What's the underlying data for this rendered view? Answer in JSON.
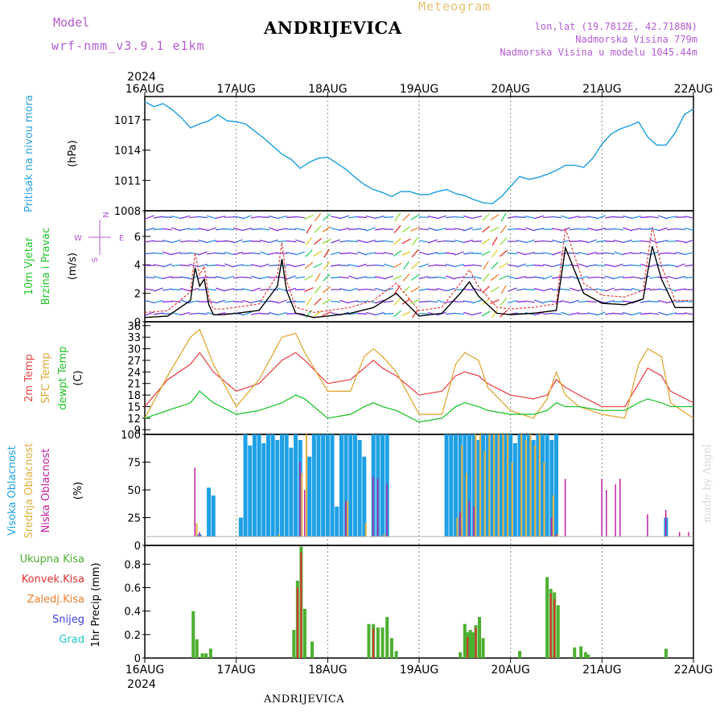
{
  "header": {
    "model_label": "Model",
    "model_name": "wrf-nmm_v3.9.1  e1km",
    "station": "ANDRIJEVICA",
    "meteogram": "Meteogram",
    "lonlat": "lon,lat (19.7812E, 42.7188N)",
    "elevation": "Nadmorska Visina 779m",
    "model_elevation": "Nadmorska Visina u modelu 1045.44m"
  },
  "footer": {
    "station": "ANDRIJEVICA",
    "credit": "made by Angel"
  },
  "time_axis": {
    "year": "2024",
    "ticks": [
      "16AUG",
      "17AUG",
      "18AUG",
      "19AUG",
      "20AUG",
      "21AUG",
      "22AUG"
    ]
  },
  "colors": {
    "pressure": "#29a3e0",
    "wind_speed": "#000000",
    "wind_gust": "#e83c3c",
    "t2m": "#e8484c",
    "sfc": "#e0a838",
    "dew": "#22c42a",
    "cloud_high": "#1ea0e6",
    "cloud_mid": "#e0b040",
    "cloud_low": "#c020a0",
    "precip_total": "#4cb030",
    "precip_conv": "#e03030",
    "precip_frozen": "#f08030",
    "snow": "#4040e0",
    "hail": "#20c8c8",
    "wind_compass": "#b45cd6"
  },
  "panels": {
    "pressure": {
      "label": "Pritisak na nivou mora",
      "unit": "(hPa)",
      "yticks": [
        "1008",
        "1011",
        "1014",
        "1017"
      ]
    },
    "wind": {
      "label1": "10m Vjetar",
      "label2": "Brzina i Pravac",
      "unit": "(m/s)",
      "yticks": [
        "0",
        "2",
        "4",
        "6"
      ],
      "compass": {
        "n": "N",
        "s": "S",
        "e": "E",
        "w": "W"
      }
    },
    "temp": {
      "label_t2m": "2m Temp",
      "label_sfc": "SFC Temp",
      "label_dew": "dewpt Temp",
      "unit": "(C)",
      "yticks": [
        "9",
        "12",
        "15",
        "18",
        "21",
        "24",
        "27",
        "30",
        "33",
        "36"
      ]
    },
    "cloud": {
      "label_high": "Visoka Oblacnost",
      "label_mid": "Srednja Oblacnost",
      "label_low": "Niska Oblacnost",
      "unit": "(%)",
      "yticks": [
        "0",
        "25",
        "50",
        "75",
        "100"
      ]
    },
    "precip": {
      "legend": [
        "Ukupna Kisa",
        "Konvek.Kisa",
        "Zaledj.Kisa",
        "Snijeg",
        "Grad"
      ],
      "unit": "1hr Precip (mm)",
      "yticks": [
        "0",
        "0.2",
        "0.4",
        "0.6",
        "0.8"
      ]
    }
  },
  "chart_data": [
    {
      "type": "line",
      "name": "sea-level-pressure",
      "x": [
        0,
        0.1,
        0.2,
        0.3,
        0.4,
        0.5,
        0.6,
        0.7,
        0.8,
        0.9,
        1.0,
        1.1,
        1.2,
        1.3,
        1.4,
        1.5,
        1.6,
        1.7,
        1.8,
        1.9,
        2.0,
        2.1,
        2.2,
        2.3,
        2.4,
        2.5,
        2.6,
        2.7,
        2.8,
        2.9,
        3.0,
        3.1,
        3.2,
        3.3,
        3.4,
        3.5,
        3.6,
        3.7,
        3.8,
        3.9,
        4.0,
        4.1,
        4.2,
        4.3,
        4.4,
        4.5,
        4.6,
        4.7,
        4.8,
        4.9,
        5.0,
        5.1,
        5.2,
        5.3,
        5.4,
        5.5,
        5.6,
        5.7,
        5.8,
        5.9,
        6.0
      ],
      "values": [
        1018.8,
        1018.3,
        1018.6,
        1018.0,
        1017.2,
        1016.2,
        1016.6,
        1016.9,
        1017.5,
        1016.9,
        1016.8,
        1016.6,
        1015.9,
        1015.2,
        1014.4,
        1013.6,
        1013.1,
        1012.2,
        1012.8,
        1013.2,
        1013.3,
        1012.7,
        1012.1,
        1011.3,
        1010.6,
        1010.1,
        1009.8,
        1009.4,
        1009.9,
        1009.9,
        1009.6,
        1009.6,
        1009.9,
        1010.1,
        1009.7,
        1009.5,
        1009.1,
        1008.8,
        1008.7,
        1009.4,
        1010.4,
        1011.4,
        1011.1,
        1011.3,
        1011.6,
        1012.0,
        1012.5,
        1012.5,
        1012.3,
        1013.2,
        1014.6,
        1015.6,
        1016.1,
        1016.4,
        1016.8,
        1015.3,
        1014.5,
        1014.5,
        1015.7,
        1017.5,
        1018.1
      ],
      "ylim": [
        1008,
        1019.3
      ],
      "xlabel": "",
      "ylabel": "(hPa)"
    },
    {
      "type": "line",
      "name": "wind-speed",
      "x": [
        0,
        0.25,
        0.5,
        0.55,
        0.6,
        0.65,
        0.7,
        0.75,
        0.85,
        1.0,
        1.25,
        1.45,
        1.5,
        1.55,
        1.65,
        1.85,
        2.0,
        2.25,
        2.5,
        2.75,
        3.0,
        3.25,
        3.45,
        3.55,
        3.65,
        3.85,
        4.0,
        4.25,
        4.5,
        4.6,
        4.8,
        5.0,
        5.25,
        5.45,
        5.5,
        5.55,
        5.65,
        5.8,
        6.0
      ],
      "values": [
        0.3,
        0.4,
        1.5,
        3.8,
        2.5,
        3.0,
        1.2,
        0.5,
        0.5,
        0.6,
        0.8,
        2.5,
        4.4,
        2.2,
        0.6,
        0.3,
        0.4,
        0.6,
        1.0,
        2.0,
        0.4,
        0.6,
        2.0,
        2.8,
        1.8,
        0.6,
        0.5,
        0.6,
        0.8,
        5.2,
        2.0,
        1.3,
        1.2,
        1.6,
        3.5,
        5.3,
        3.0,
        1.0,
        1.0
      ],
      "ylim": [
        0,
        7.8
      ],
      "ylabel": "(m/s)"
    },
    {
      "type": "line",
      "name": "temperature",
      "x": [
        0,
        0.25,
        0.5,
        0.6,
        0.75,
        1.0,
        1.25,
        1.5,
        1.65,
        1.75,
        2.0,
        2.25,
        2.4,
        2.5,
        2.6,
        2.75,
        3.0,
        3.25,
        3.4,
        3.5,
        3.65,
        3.75,
        4.0,
        4.25,
        4.4,
        4.5,
        4.6,
        4.75,
        5.0,
        5.25,
        5.4,
        5.5,
        5.65,
        5.75,
        6.0
      ],
      "series": [
        {
          "name": "2m Temp",
          "values": [
            15,
            22,
            26,
            29,
            24,
            19,
            21,
            27,
            29,
            27,
            21,
            22,
            25,
            27,
            25,
            23,
            18,
            19,
            23,
            24,
            23,
            21,
            18,
            17,
            18,
            22,
            20,
            18,
            15,
            15,
            21,
            25,
            23,
            19,
            16
          ]
        },
        {
          "name": "SFC Temp",
          "values": [
            12,
            23,
            33,
            35,
            26,
            15,
            22,
            33,
            34,
            29,
            19,
            19,
            28,
            30,
            28,
            24,
            13,
            13,
            26,
            29,
            27,
            20,
            14,
            12,
            17,
            24,
            18,
            15,
            13,
            12,
            26,
            30,
            28,
            16,
            12
          ]
        },
        {
          "name": "dewpt Temp",
          "values": [
            12,
            14,
            16,
            19,
            16,
            13,
            14,
            16,
            18,
            17,
            12,
            13,
            15,
            16,
            15,
            14,
            11,
            12,
            15,
            16,
            15,
            14,
            13,
            13,
            14,
            16,
            15,
            15,
            14,
            14,
            16,
            17,
            16,
            15,
            15
          ]
        }
      ],
      "ylim": [
        7.8,
        37
      ],
      "ylabel": "(C)"
    },
    {
      "type": "bar",
      "name": "cloud-cover",
      "series": [
        {
          "name": "Visoka Oblacnost",
          "x": [
            0.6,
            0.7,
            0.75,
            1.05,
            1.1,
            1.15,
            1.2,
            1.25,
            1.3,
            1.35,
            1.4,
            1.45,
            1.5,
            1.55,
            1.6,
            1.65,
            1.7,
            1.8,
            1.85,
            1.9,
            1.95,
            2.0,
            2.05,
            2.1,
            2.15,
            2.2,
            2.25,
            2.3,
            2.35,
            2.4,
            2.5,
            2.55,
            2.6,
            2.65,
            3.3,
            3.35,
            3.4,
            3.45,
            3.5,
            3.55,
            3.6,
            3.65,
            3.7,
            3.75,
            3.8,
            3.85,
            3.9,
            3.95,
            4.0,
            4.05,
            4.1,
            4.15,
            4.2,
            4.25,
            4.3,
            4.35,
            4.4,
            4.45,
            4.5,
            5.7
          ],
          "values": [
            10,
            52,
            45,
            25,
            100,
            90,
            100,
            100,
            92,
            100,
            100,
            95,
            100,
            100,
            88,
            100,
            95,
            80,
            100,
            100,
            100,
            100,
            100,
            35,
            100,
            100,
            100,
            100,
            95,
            80,
            100,
            100,
            100,
            100,
            100,
            100,
            100,
            100,
            100,
            100,
            100,
            95,
            100,
            100,
            100,
            100,
            100,
            100,
            100,
            92,
            100,
            100,
            100,
            95,
            100,
            100,
            100,
            95,
            100,
            25
          ]
        },
        {
          "name": "Srednja Oblacnost",
          "x": [
            0.45,
            0.55,
            1.45,
            1.7,
            1.75,
            2.2,
            2.4,
            2.6,
            3.4,
            3.45,
            3.5,
            3.6,
            3.65,
            3.7,
            3.75,
            3.8,
            3.85,
            3.9,
            3.95,
            4.0,
            4.1,
            4.15,
            4.2,
            4.25,
            4.3,
            4.35,
            4.45,
            4.5
          ],
          "values": [
            5,
            20,
            10,
            65,
            100,
            40,
            20,
            10,
            25,
            90,
            65,
            100,
            100,
            85,
            100,
            100,
            100,
            100,
            100,
            75,
            100,
            95,
            100,
            90,
            100,
            75,
            45,
            10
          ]
        },
        {
          "name": "Niska Oblacnost",
          "x": [
            0.55,
            0.6,
            1.7,
            1.75,
            2.2,
            2.5,
            2.55,
            2.65,
            3.45,
            3.55,
            3.6,
            4.45,
            4.5,
            4.6,
            4.85,
            5.0,
            5.05,
            5.1,
            5.15,
            5.2,
            5.35,
            5.5,
            5.6,
            5.7,
            5.85,
            5.95
          ],
          "values": [
            70,
            12,
            75,
            50,
            40,
            62,
            60,
            55,
            30,
            40,
            35,
            25,
            10,
            60,
            6,
            60,
            50,
            8,
            55,
            60,
            8,
            28,
            5,
            32,
            12,
            12
          ]
        }
      ],
      "ylim": [
        0,
        100
      ],
      "ylabel": "(%)"
    },
    {
      "type": "bar",
      "name": "hourly-precipitation",
      "series": [
        {
          "name": "Ukupna Kisa",
          "x": [
            0.53,
            0.57,
            0.63,
            0.67,
            0.72,
            1.63,
            1.67,
            1.71,
            1.75,
            1.83,
            2.45,
            2.5,
            2.55,
            2.6,
            2.65,
            2.7,
            2.75,
            3.45,
            3.5,
            3.53,
            3.56,
            3.59,
            3.62,
            3.66,
            3.7,
            4.1,
            4.4,
            4.44,
            4.48,
            4.52,
            4.7,
            4.77,
            4.82,
            4.85,
            5.7
          ],
          "values": [
            0.4,
            0.16,
            0.04,
            0.04,
            0.08,
            0.24,
            0.66,
            0.95,
            0.42,
            0.14,
            0.29,
            0.29,
            0.26,
            0.26,
            0.35,
            0.17,
            0.06,
            0.05,
            0.29,
            0.22,
            0.24,
            0.22,
            0.28,
            0.35,
            0.17,
            0.06,
            0.69,
            0.59,
            0.56,
            0.45,
            0.09,
            0.1,
            0.05,
            0.03,
            0.08
          ]
        },
        {
          "name": "Konvek.Kisa",
          "x": [
            1.67,
            1.71,
            2.5,
            3.53,
            3.62,
            4.44,
            4.48
          ],
          "values": [
            0.6,
            0.9,
            0.25,
            0.18,
            0.26,
            0.55,
            0.5
          ]
        }
      ],
      "ylim": [
        0,
        0.96
      ],
      "ylabel": "1hr Precip (mm)"
    }
  ]
}
